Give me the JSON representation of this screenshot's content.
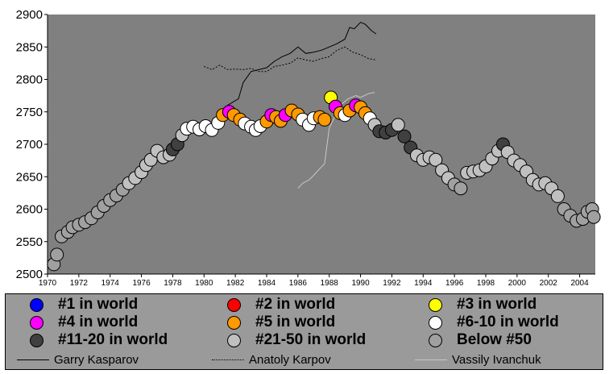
{
  "chart_data": {
    "type": "scatter",
    "title": "",
    "xlabel": "",
    "ylabel": "",
    "xlim": [
      1970,
      2005
    ],
    "ylim": [
      2500,
      2900
    ],
    "x_ticks": [
      "1970",
      "1972",
      "1974",
      "1976",
      "1978",
      "1980",
      "1982",
      "1984",
      "1986",
      "1988",
      "1990",
      "1992",
      "1994",
      "1996",
      "1998",
      "2000",
      "2002",
      "2004"
    ],
    "y_ticks": [
      "2500",
      "2550",
      "2600",
      "2650",
      "2700",
      "2750",
      "2800",
      "2850",
      "2900"
    ],
    "grid": false,
    "plot_background": "#808080",
    "rank_categories": [
      {
        "name": "#1 in world",
        "color": "#0000ff"
      },
      {
        "name": "#2 in world",
        "color": "#ff0000"
      },
      {
        "name": "#3 in world",
        "color": "#ffff00"
      },
      {
        "name": "#4 in world",
        "color": "#ff00ff"
      },
      {
        "name": "#5 in world",
        "color": "#ff9900"
      },
      {
        "name": "#6-10 in world",
        "color": "#ffffff"
      },
      {
        "name": "#11-20 in world",
        "color": "#404040"
      },
      {
        "name": "#21-50 in world",
        "color": "#c0c0c0"
      },
      {
        "name": "Below #50",
        "color": "#a0a0a0"
      }
    ],
    "points": [
      {
        "x": 1970.4,
        "y": 2515,
        "r": "Below #50"
      },
      {
        "x": 1970.6,
        "y": 2530,
        "r": "Below #50"
      },
      {
        "x": 1970.9,
        "y": 2558,
        "r": "Below #50"
      },
      {
        "x": 1971.3,
        "y": 2565,
        "r": "Below #50"
      },
      {
        "x": 1971.6,
        "y": 2572,
        "r": "Below #50"
      },
      {
        "x": 1972.0,
        "y": 2576,
        "r": "Below #50"
      },
      {
        "x": 1972.4,
        "y": 2580,
        "r": "Below #50"
      },
      {
        "x": 1972.8,
        "y": 2586,
        "r": "Below #50"
      },
      {
        "x": 1973.2,
        "y": 2595,
        "r": "Below #50"
      },
      {
        "x": 1973.6,
        "y": 2605,
        "r": "Below #50"
      },
      {
        "x": 1974.0,
        "y": 2614,
        "r": "Below #50"
      },
      {
        "x": 1974.4,
        "y": 2621,
        "r": "Below #50"
      },
      {
        "x": 1974.8,
        "y": 2630,
        "r": "Below #50"
      },
      {
        "x": 1975.2,
        "y": 2640,
        "r": "#21-50 in world"
      },
      {
        "x": 1975.6,
        "y": 2648,
        "r": "#21-50 in world"
      },
      {
        "x": 1976.0,
        "y": 2657,
        "r": "#21-50 in world"
      },
      {
        "x": 1976.3,
        "y": 2668,
        "r": "#21-50 in world"
      },
      {
        "x": 1976.6,
        "y": 2676,
        "r": "#21-50 in world"
      },
      {
        "x": 1977.0,
        "y": 2690,
        "r": "#21-50 in world"
      },
      {
        "x": 1977.4,
        "y": 2680,
        "r": "#21-50 in world"
      },
      {
        "x": 1977.8,
        "y": 2684,
        "r": "#21-50 in world"
      },
      {
        "x": 1978.0,
        "y": 2692,
        "r": "#11-20 in world"
      },
      {
        "x": 1978.3,
        "y": 2700,
        "r": "#11-20 in world"
      },
      {
        "x": 1978.6,
        "y": 2714,
        "r": "#21-50 in world"
      },
      {
        "x": 1978.9,
        "y": 2724,
        "r": "#6-10 in world"
      },
      {
        "x": 1979.3,
        "y": 2727,
        "r": "#6-10 in world"
      },
      {
        "x": 1979.7,
        "y": 2723,
        "r": "#6-10 in world"
      },
      {
        "x": 1980.1,
        "y": 2728,
        "r": "#6-10 in world"
      },
      {
        "x": 1980.5,
        "y": 2722,
        "r": "#6-10 in world"
      },
      {
        "x": 1980.9,
        "y": 2733,
        "r": "#6-10 in world"
      },
      {
        "x": 1981.2,
        "y": 2745,
        "r": "#5 in world"
      },
      {
        "x": 1981.6,
        "y": 2750,
        "r": "#4 in world"
      },
      {
        "x": 1981.9,
        "y": 2745,
        "r": "#5 in world"
      },
      {
        "x": 1982.3,
        "y": 2738,
        "r": "#5 in world"
      },
      {
        "x": 1982.6,
        "y": 2732,
        "r": "#6-10 in world"
      },
      {
        "x": 1983.0,
        "y": 2727,
        "r": "#6-10 in world"
      },
      {
        "x": 1983.3,
        "y": 2722,
        "r": "#6-10 in world"
      },
      {
        "x": 1983.6,
        "y": 2728,
        "r": "#6-10 in world"
      },
      {
        "x": 1984.0,
        "y": 2735,
        "r": "#5 in world"
      },
      {
        "x": 1984.3,
        "y": 2745,
        "r": "#4 in world"
      },
      {
        "x": 1984.6,
        "y": 2742,
        "r": "#5 in world"
      },
      {
        "x": 1984.9,
        "y": 2736,
        "r": "#5 in world"
      },
      {
        "x": 1985.2,
        "y": 2745,
        "r": "#4 in world"
      },
      {
        "x": 1985.6,
        "y": 2752,
        "r": "#5 in world"
      },
      {
        "x": 1986.0,
        "y": 2746,
        "r": "#5 in world"
      },
      {
        "x": 1986.3,
        "y": 2738,
        "r": "#6-10 in world"
      },
      {
        "x": 1986.7,
        "y": 2730,
        "r": "#6-10 in world"
      },
      {
        "x": 1987.0,
        "y": 2740,
        "r": "#6-10 in world"
      },
      {
        "x": 1987.4,
        "y": 2742,
        "r": "#5 in world"
      },
      {
        "x": 1987.7,
        "y": 2738,
        "r": "#5 in world"
      },
      {
        "x": 1988.1,
        "y": 2772,
        "r": "#3 in world"
      },
      {
        "x": 1988.4,
        "y": 2758,
        "r": "#4 in world"
      },
      {
        "x": 1988.7,
        "y": 2748,
        "r": "#5 in world"
      },
      {
        "x": 1989.0,
        "y": 2745,
        "r": "#6-10 in world"
      },
      {
        "x": 1989.3,
        "y": 2752,
        "r": "#5 in world"
      },
      {
        "x": 1989.7,
        "y": 2760,
        "r": "#4 in world"
      },
      {
        "x": 1990.0,
        "y": 2757,
        "r": "#5 in world"
      },
      {
        "x": 1990.3,
        "y": 2748,
        "r": "#5 in world"
      },
      {
        "x": 1990.6,
        "y": 2740,
        "r": "#6-10 in world"
      },
      {
        "x": 1990.9,
        "y": 2730,
        "r": "#21-50 in world"
      },
      {
        "x": 1991.2,
        "y": 2720,
        "r": "#11-20 in world"
      },
      {
        "x": 1991.6,
        "y": 2718,
        "r": "#11-20 in world"
      },
      {
        "x": 1992.0,
        "y": 2722,
        "r": "#11-20 in world"
      },
      {
        "x": 1992.4,
        "y": 2730,
        "r": "#21-50 in world"
      },
      {
        "x": 1992.8,
        "y": 2712,
        "r": "#11-20 in world"
      },
      {
        "x": 1993.2,
        "y": 2695,
        "r": "#11-20 in world"
      },
      {
        "x": 1993.6,
        "y": 2683,
        "r": "#21-50 in world"
      },
      {
        "x": 1994.0,
        "y": 2676,
        "r": "#21-50 in world"
      },
      {
        "x": 1994.4,
        "y": 2680,
        "r": "#21-50 in world"
      },
      {
        "x": 1994.8,
        "y": 2676,
        "r": "#21-50 in world"
      },
      {
        "x": 1995.2,
        "y": 2660,
        "r": "#21-50 in world"
      },
      {
        "x": 1995.6,
        "y": 2648,
        "r": "#21-50 in world"
      },
      {
        "x": 1996.0,
        "y": 2638,
        "r": "Below #50"
      },
      {
        "x": 1996.4,
        "y": 2632,
        "r": "Below #50"
      },
      {
        "x": 1996.8,
        "y": 2656,
        "r": "#21-50 in world"
      },
      {
        "x": 1997.2,
        "y": 2658,
        "r": "#21-50 in world"
      },
      {
        "x": 1997.6,
        "y": 2660,
        "r": "#21-50 in world"
      },
      {
        "x": 1998.0,
        "y": 2666,
        "r": "#21-50 in world"
      },
      {
        "x": 1998.4,
        "y": 2678,
        "r": "#21-50 in world"
      },
      {
        "x": 1998.8,
        "y": 2690,
        "r": "#21-50 in world"
      },
      {
        "x": 1999.1,
        "y": 2700,
        "r": "#11-20 in world"
      },
      {
        "x": 1999.4,
        "y": 2688,
        "r": "#21-50 in world"
      },
      {
        "x": 1999.8,
        "y": 2675,
        "r": "#21-50 in world"
      },
      {
        "x": 2000.2,
        "y": 2668,
        "r": "#21-50 in world"
      },
      {
        "x": 2000.6,
        "y": 2658,
        "r": "#21-50 in world"
      },
      {
        "x": 2001.0,
        "y": 2645,
        "r": "#21-50 in world"
      },
      {
        "x": 2001.4,
        "y": 2638,
        "r": "#21-50 in world"
      },
      {
        "x": 2001.8,
        "y": 2640,
        "r": "#21-50 in world"
      },
      {
        "x": 2002.2,
        "y": 2632,
        "r": "#21-50 in world"
      },
      {
        "x": 2002.6,
        "y": 2620,
        "r": "#21-50 in world"
      },
      {
        "x": 2003.0,
        "y": 2600,
        "r": "Below #50"
      },
      {
        "x": 2003.4,
        "y": 2590,
        "r": "Below #50"
      },
      {
        "x": 2003.8,
        "y": 2582,
        "r": "Below #50"
      },
      {
        "x": 2004.2,
        "y": 2585,
        "r": "Below #50"
      },
      {
        "x": 2004.5,
        "y": 2596,
        "r": "Below #50"
      },
      {
        "x": 2004.8,
        "y": 2600,
        "r": "Below #50"
      },
      {
        "x": 2004.9,
        "y": 2588,
        "r": "Below #50"
      }
    ],
    "series": [
      {
        "name": "Garry Kasparov",
        "style": "solid",
        "color": "#000000",
        "points": [
          [
            1981.5,
            2760
          ],
          [
            1982.2,
            2770
          ],
          [
            1982.5,
            2795
          ],
          [
            1983.0,
            2812
          ],
          [
            1983.5,
            2815
          ],
          [
            1984.0,
            2818
          ],
          [
            1984.5,
            2828
          ],
          [
            1985.0,
            2835
          ],
          [
            1985.5,
            2840
          ],
          [
            1986.0,
            2850
          ],
          [
            1986.5,
            2840
          ],
          [
            1987.0,
            2842
          ],
          [
            1987.5,
            2845
          ],
          [
            1988.0,
            2850
          ],
          [
            1988.5,
            2855
          ],
          [
            1989.0,
            2862
          ],
          [
            1989.3,
            2880
          ],
          [
            1989.6,
            2878
          ],
          [
            1990.0,
            2888
          ],
          [
            1990.3,
            2885
          ],
          [
            1990.7,
            2875
          ],
          [
            1991.0,
            2870
          ]
        ]
      },
      {
        "name": "Anatoly Karpov",
        "style": "dotted",
        "color": "#000000",
        "points": [
          [
            1980.0,
            2820
          ],
          [
            1980.5,
            2815
          ],
          [
            1981.0,
            2822
          ],
          [
            1981.5,
            2815
          ],
          [
            1982.0,
            2816
          ],
          [
            1982.5,
            2815
          ],
          [
            1983.0,
            2817
          ],
          [
            1983.5,
            2812
          ],
          [
            1984.0,
            2812
          ],
          [
            1984.5,
            2820
          ],
          [
            1985.0,
            2822
          ],
          [
            1985.5,
            2825
          ],
          [
            1986.0,
            2833
          ],
          [
            1986.5,
            2830
          ],
          [
            1987.0,
            2828
          ],
          [
            1987.5,
            2832
          ],
          [
            1988.0,
            2835
          ],
          [
            1988.5,
            2845
          ],
          [
            1989.0,
            2850
          ],
          [
            1989.5,
            2842
          ],
          [
            1990.0,
            2838
          ],
          [
            1990.5,
            2832
          ],
          [
            1991.0,
            2830
          ]
        ]
      },
      {
        "name": "Vassily Ivanchuk",
        "style": "solid",
        "color": "#c8c8c8",
        "points": [
          [
            1986.0,
            2632
          ],
          [
            1986.3,
            2640
          ],
          [
            1986.7,
            2645
          ],
          [
            1987.0,
            2652
          ],
          [
            1987.3,
            2660
          ],
          [
            1987.7,
            2670
          ],
          [
            1988.0,
            2725
          ],
          [
            1988.2,
            2735
          ],
          [
            1988.5,
            2750
          ],
          [
            1988.8,
            2762
          ],
          [
            1989.2,
            2770
          ],
          [
            1989.7,
            2775
          ],
          [
            1990.0,
            2772
          ],
          [
            1990.5,
            2778
          ],
          [
            1990.9,
            2780
          ]
        ]
      }
    ]
  },
  "legend": {
    "items": [
      {
        "label": "#1 in world",
        "color": "#0000ff"
      },
      {
        "label": "#2 in world",
        "color": "#ff0000"
      },
      {
        "label": "#3 in world",
        "color": "#ffff00"
      },
      {
        "label": "#4 in world",
        "color": "#ff00ff"
      },
      {
        "label": "#5 in world",
        "color": "#ff9900"
      },
      {
        "label": "#6-10 in world",
        "color": "#ffffff"
      },
      {
        "label": "#11-20 in world",
        "color": "#404040"
      },
      {
        "label": "#21-50 in world",
        "color": "#c0c0c0"
      },
      {
        "label": "Below #50",
        "color": "#a0a0a0"
      }
    ],
    "lines": [
      {
        "label": "Garry Kasparov",
        "style": "solid",
        "color": "#000000"
      },
      {
        "label": "Anatoly Karpov",
        "style": "dotted",
        "color": "#000000"
      },
      {
        "label": "Vassily Ivanchuk",
        "style": "solid",
        "color": "#c8c8c8"
      }
    ]
  }
}
